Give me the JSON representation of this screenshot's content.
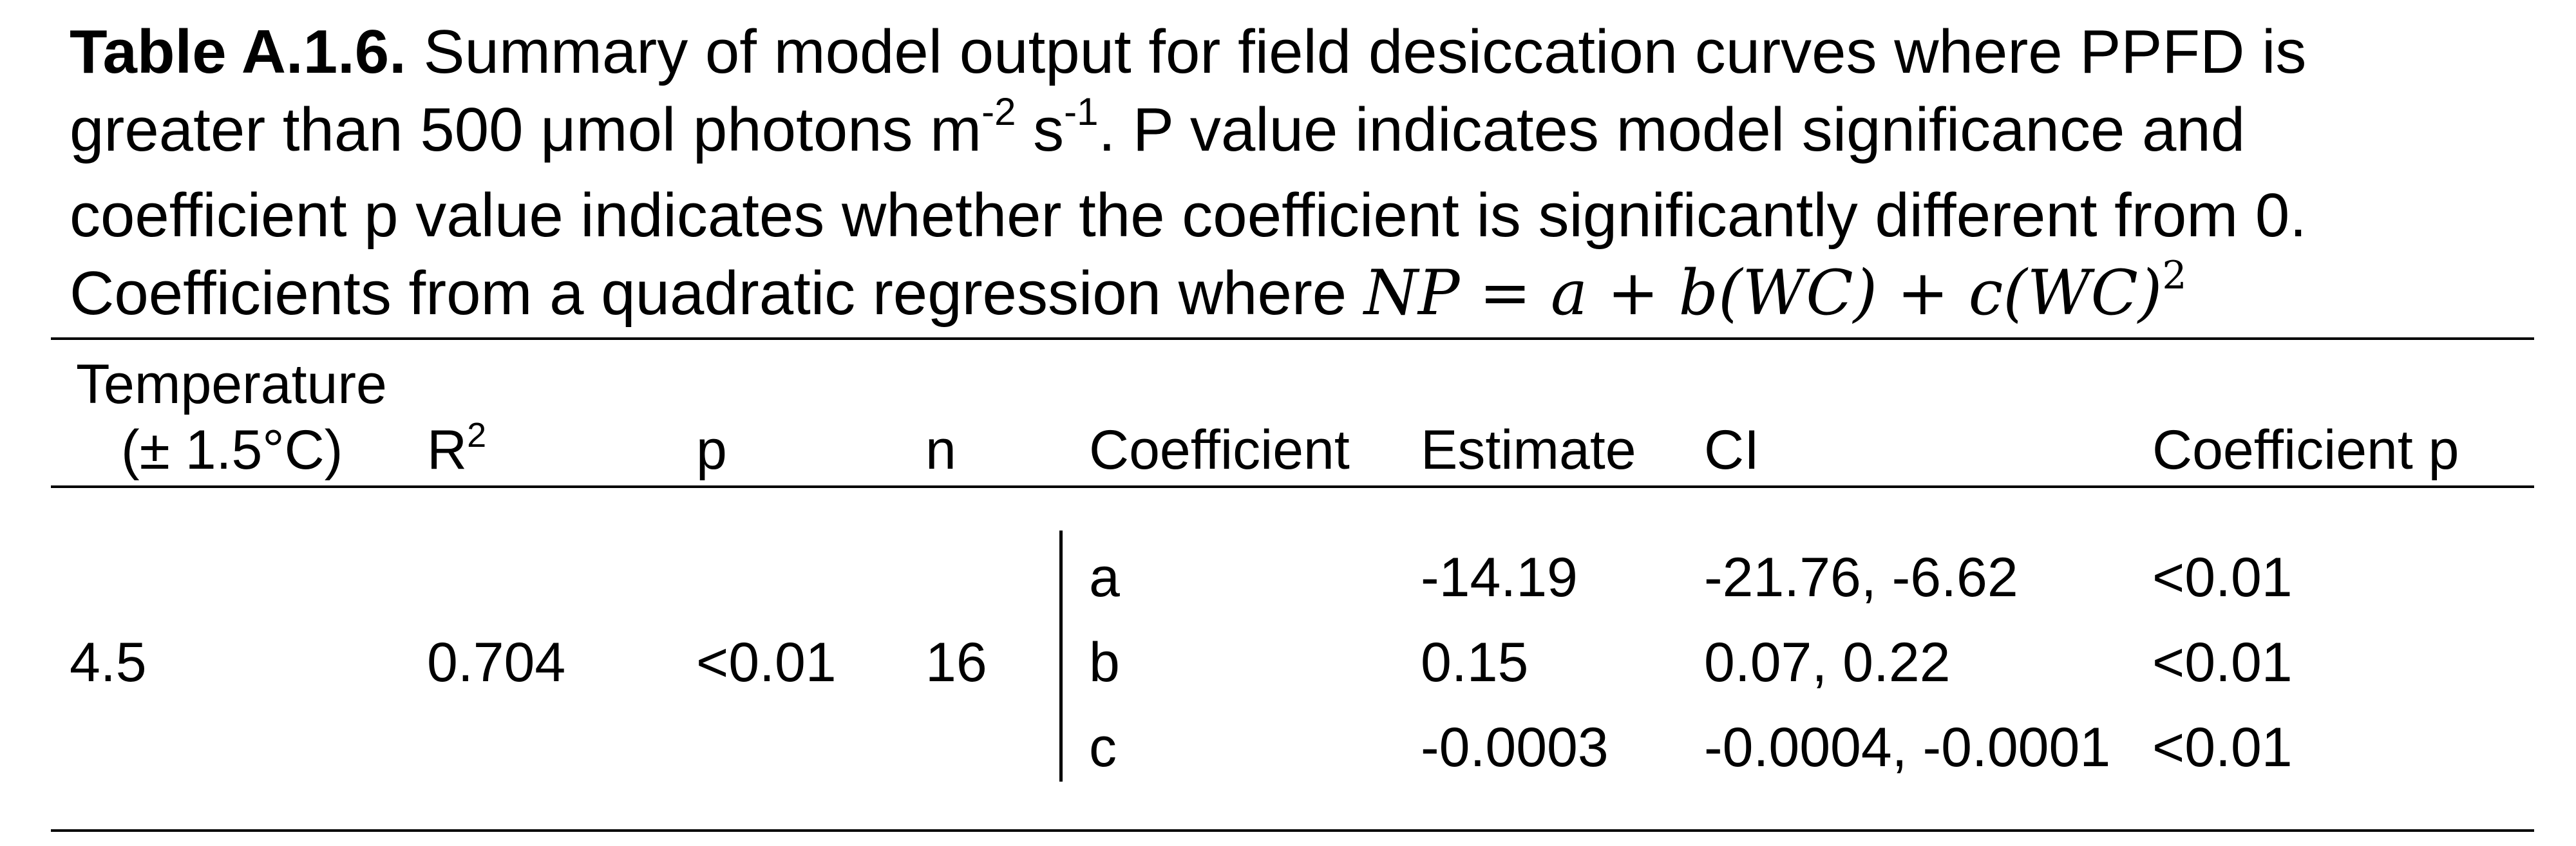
{
  "caption": {
    "label": "Table A.1.6.",
    "l1": " Summary of model output for field desiccation curves where PPFD is",
    "l2a": "greater than 500 μmol photons m",
    "l2sup1": "-2",
    "l2b": " s",
    "l2sup2": "-1",
    "l2c": ". P value indicates model significance and",
    "l3": "coefficient p value indicates whether the coefficient is significantly different from 0.",
    "l4": "Coefficients from a quadratic regression where ",
    "equation": "NP = a + b(WC) + c(WC)",
    "equation_sup": "2"
  },
  "headers": {
    "temperature_line1": "Temperature",
    "temperature_line2": "(± 1.5°C)",
    "r2": "R",
    "r2_sup": "2",
    "p": "p",
    "n": "n",
    "coefficient": "Coefficient",
    "estimate": "Estimate",
    "ci": "CI",
    "coefficient_p": "Coefficient p"
  },
  "model": {
    "temperature": "4.5",
    "r2": "0.704",
    "p": "<0.01",
    "n": "16"
  },
  "rows": [
    {
      "coefficient": "a",
      "estimate": "-14.19",
      "ci": "-21.76, -6.62",
      "coef_p": "<0.01"
    },
    {
      "coefficient": "b",
      "estimate": "0.15",
      "ci": "0.07, 0.22",
      "coef_p": "<0.01"
    },
    {
      "coefficient": "c",
      "estimate": "-0.0003",
      "ci": "-0.0004, -0.0001",
      "coef_p": "<0.01"
    }
  ]
}
